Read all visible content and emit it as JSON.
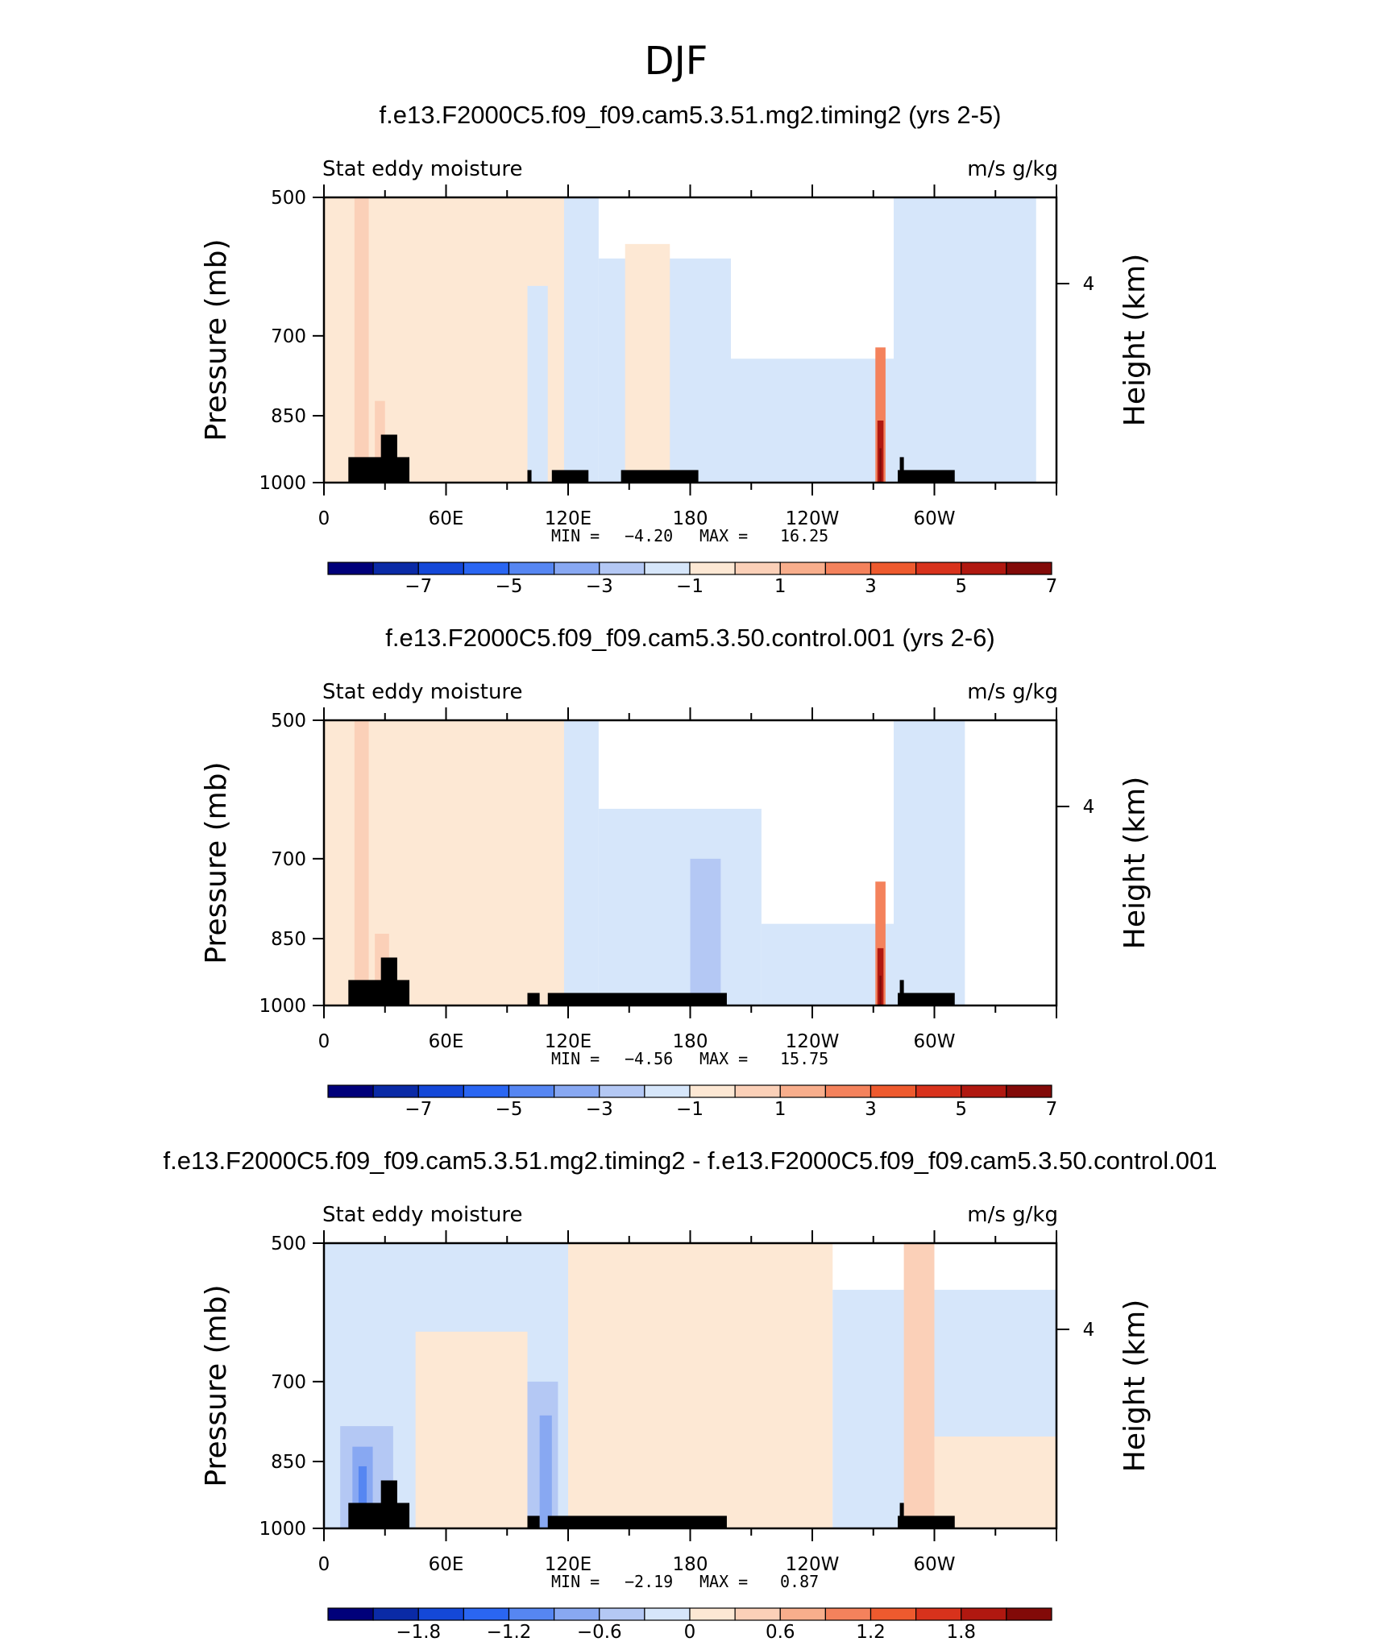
{
  "figure_title": "DJF",
  "colors": {
    "neg": [
      "#00007a",
      "#0a2aa6",
      "#1448d8",
      "#2a66f2",
      "#5686f2",
      "#88a8f2",
      "#b4c8f4",
      "#d6e6fa"
    ],
    "pos": [
      "#fde8d4",
      "#fbd0b8",
      "#f8ae8c",
      "#f4825c",
      "#ee5a2e",
      "#d8321c",
      "#b01810",
      "#820a08"
    ],
    "land": "#000000"
  },
  "chart_data": [
    {
      "type": "heatmap",
      "title": "f.e13.F2000C5.f09_f09.cam5.3.51.mg2.timing2 (yrs 2-5)",
      "left_label": "Stat eddy moisture",
      "right_label": "m/s g/kg",
      "ylabel": "Pressure (mb)",
      "y2label": "Height (km)",
      "y_ticks": [
        "500",
        "700",
        "850",
        "1000"
      ],
      "y2_ticks": [
        "4"
      ],
      "x_ticks": [
        "0",
        "60E",
        "120E",
        "180",
        "120W",
        "60W"
      ],
      "ylim": [
        1000,
        500
      ],
      "xlim": [
        0,
        360
      ],
      "min_label": "MIN =",
      "min_value": "-4.20",
      "max_label": "MAX =",
      "max_value": "16.25",
      "colorbar_levels": [
        -8,
        -7,
        -6,
        -5,
        -4,
        -3,
        -2,
        -1,
        0,
        1,
        2,
        3,
        4,
        5,
        6,
        7,
        8
      ],
      "colorbar_labels": [
        "-7",
        "-5",
        "-3",
        "-1",
        "1",
        "3",
        "5",
        "7"
      ],
      "regions": [
        {
          "lon": [
            0,
            120
          ],
          "pmin": 500,
          "sign": 1,
          "level": 0
        },
        {
          "lon": [
            118,
            135
          ],
          "pmin": 500,
          "sign": -1,
          "level": 0
        },
        {
          "lon": [
            135,
            200
          ],
          "pmin": 580,
          "sign": -1,
          "level": 0
        },
        {
          "lon": [
            200,
            280
          ],
          "pmin": 740,
          "sign": -1,
          "level": 0
        },
        {
          "lon": [
            280,
            350
          ],
          "pmin": 500,
          "sign": -1,
          "level": 0
        },
        {
          "lon": [
            100,
            110
          ],
          "pmin": 620,
          "sign": -1,
          "level": 0
        },
        {
          "lon": [
            148,
            170
          ],
          "pmin": 560,
          "sign": 1,
          "level": 0
        },
        {
          "lon": [
            15,
            22
          ],
          "pmin": 500,
          "sign": 1,
          "level": 1
        },
        {
          "lon": [
            25,
            30
          ],
          "pmin": 820,
          "sign": 1,
          "level": 1
        },
        {
          "lon": [
            271,
            276
          ],
          "pmin": 720,
          "sign": 1,
          "level": 3
        },
        {
          "lon": [
            272,
            275
          ],
          "pmin": 860,
          "sign": 1,
          "level": 6
        },
        {
          "lon": [
            273,
            274
          ],
          "pmin": 920,
          "sign": 1,
          "level": 7
        }
      ],
      "land": [
        {
          "lon": [
            12,
            42
          ],
          "p_top": 940
        },
        {
          "lon": [
            28,
            36
          ],
          "p_top": 890
        },
        {
          "lon": [
            100,
            102
          ],
          "p_top": 970
        },
        {
          "lon": [
            112,
            130
          ],
          "p_top": 970
        },
        {
          "lon": [
            146,
            184
          ],
          "p_top": 970
        },
        {
          "lon": [
            282,
            310
          ],
          "p_top": 970
        },
        {
          "lon": [
            283,
            285
          ],
          "p_top": 940
        }
      ]
    },
    {
      "type": "heatmap",
      "title": "f.e13.F2000C5.f09_f09.cam5.3.50.control.001 (yrs 2-6)",
      "left_label": "Stat eddy moisture",
      "right_label": "m/s g/kg",
      "ylabel": "Pressure (mb)",
      "y2label": "Height (km)",
      "y_ticks": [
        "500",
        "700",
        "850",
        "1000"
      ],
      "y2_ticks": [
        "4"
      ],
      "x_ticks": [
        "0",
        "60E",
        "120E",
        "180",
        "120W",
        "60W"
      ],
      "ylim": [
        1000,
        500
      ],
      "xlim": [
        0,
        360
      ],
      "min_label": "MIN =",
      "min_value": "-4.56",
      "max_label": "MAX =",
      "max_value": "15.75",
      "colorbar_levels": [
        -8,
        -7,
        -6,
        -5,
        -4,
        -3,
        -2,
        -1,
        0,
        1,
        2,
        3,
        4,
        5,
        6,
        7,
        8
      ],
      "colorbar_labels": [
        "-7",
        "-5",
        "-3",
        "-1",
        "1",
        "3",
        "5",
        "7"
      ],
      "regions": [
        {
          "lon": [
            0,
            120
          ],
          "pmin": 500,
          "sign": 1,
          "level": 0
        },
        {
          "lon": [
            118,
            135
          ],
          "pmin": 500,
          "sign": -1,
          "level": 0
        },
        {
          "lon": [
            135,
            215
          ],
          "pmin": 620,
          "sign": -1,
          "level": 0
        },
        {
          "lon": [
            215,
            280
          ],
          "pmin": 820,
          "sign": -1,
          "level": 0
        },
        {
          "lon": [
            280,
            315
          ],
          "pmin": 500,
          "sign": -1,
          "level": 0
        },
        {
          "lon": [
            180,
            195
          ],
          "pmin": 700,
          "sign": -1,
          "level": 1
        },
        {
          "lon": [
            15,
            22
          ],
          "pmin": 500,
          "sign": 1,
          "level": 1
        },
        {
          "lon": [
            25,
            32
          ],
          "pmin": 840,
          "sign": 1,
          "level": 1
        },
        {
          "lon": [
            271,
            276
          ],
          "pmin": 740,
          "sign": 1,
          "level": 3
        },
        {
          "lon": [
            272,
            275
          ],
          "pmin": 870,
          "sign": 1,
          "level": 6
        },
        {
          "lon": [
            273,
            274
          ],
          "pmin": 930,
          "sign": 1,
          "level": 7
        }
      ],
      "land": [
        {
          "lon": [
            12,
            42
          ],
          "p_top": 940
        },
        {
          "lon": [
            28,
            36
          ],
          "p_top": 890
        },
        {
          "lon": [
            100,
            106
          ],
          "p_top": 970
        },
        {
          "lon": [
            110,
            198
          ],
          "p_top": 970
        },
        {
          "lon": [
            282,
            310
          ],
          "p_top": 970
        },
        {
          "lon": [
            283,
            285
          ],
          "p_top": 940
        }
      ]
    },
    {
      "type": "heatmap",
      "title": "f.e13.F2000C5.f09_f09.cam5.3.51.mg2.timing2 - f.e13.F2000C5.f09_f09.cam5.3.50.control.001",
      "left_label": "Stat eddy moisture",
      "right_label": "m/s g/kg",
      "ylabel": "Pressure (mb)",
      "y2label": "Height (km)",
      "y_ticks": [
        "500",
        "700",
        "850",
        "1000"
      ],
      "y2_ticks": [
        "4"
      ],
      "x_ticks": [
        "0",
        "60E",
        "120E",
        "180",
        "120W",
        "60W"
      ],
      "ylim": [
        1000,
        500
      ],
      "xlim": [
        0,
        360
      ],
      "min_label": "MIN =",
      "min_value": "-2.19",
      "max_label": "MAX =",
      "max_value": "0.87",
      "colorbar_levels": [
        -2.4,
        -2.1,
        -1.8,
        -1.5,
        -1.2,
        -0.9,
        -0.6,
        -0.3,
        0,
        0.3,
        0.6,
        0.9,
        1.2,
        1.5,
        1.8,
        2.1,
        2.4
      ],
      "colorbar_labels": [
        "-1.8",
        "-1.2",
        "-0.6",
        "0",
        "0.6",
        "1.2",
        "1.8"
      ],
      "regions": [
        {
          "lon": [
            0,
            120
          ],
          "pmin": 500,
          "sign": -1,
          "level": 0
        },
        {
          "lon": [
            45,
            100
          ],
          "pmin": 620,
          "sign": 1,
          "level": 0
        },
        {
          "lon": [
            120,
            250
          ],
          "pmin": 500,
          "sign": 1,
          "level": 0
        },
        {
          "lon": [
            250,
            360
          ],
          "pmin": 560,
          "sign": -1,
          "level": 0
        },
        {
          "lon": [
            300,
            360
          ],
          "pmin": 800,
          "sign": 1,
          "level": 0
        },
        {
          "lon": [
            8,
            34
          ],
          "pmin": 780,
          "sign": -1,
          "level": 1
        },
        {
          "lon": [
            14,
            24
          ],
          "pmin": 820,
          "sign": -1,
          "level": 2
        },
        {
          "lon": [
            17,
            21
          ],
          "pmin": 860,
          "sign": -1,
          "level": 3
        },
        {
          "lon": [
            100,
            115
          ],
          "pmin": 700,
          "sign": -1,
          "level": 1
        },
        {
          "lon": [
            106,
            112
          ],
          "pmin": 760,
          "sign": -1,
          "level": 2
        },
        {
          "lon": [
            285,
            300
          ],
          "pmin": 500,
          "sign": 1,
          "level": 1
        }
      ],
      "land": [
        {
          "lon": [
            12,
            42
          ],
          "p_top": 940
        },
        {
          "lon": [
            28,
            36
          ],
          "p_top": 890
        },
        {
          "lon": [
            100,
            106
          ],
          "p_top": 970
        },
        {
          "lon": [
            110,
            198
          ],
          "p_top": 970
        },
        {
          "lon": [
            282,
            310
          ],
          "p_top": 970
        },
        {
          "lon": [
            283,
            285
          ],
          "p_top": 940
        }
      ]
    }
  ]
}
